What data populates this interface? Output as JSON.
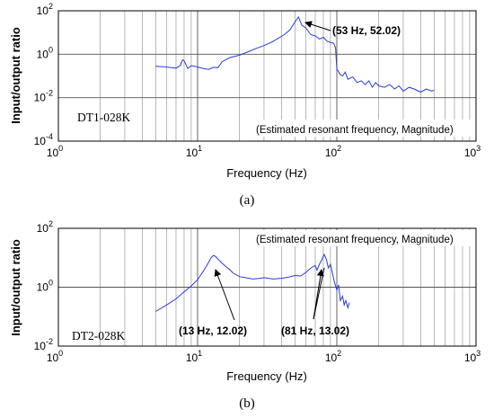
{
  "chart_data": [
    {
      "type": "line",
      "panel_caption": "(a)",
      "specimen_label": "DT1-028K",
      "annotation_box": "(Estimated resonant frequency, Magnitude)",
      "xlabel": "Frequency (Hz)",
      "ylabel": "Input/output ratio",
      "xscale": "log",
      "yscale": "log",
      "xlim": [
        1,
        1000
      ],
      "ylim": [
        0.0001,
        100
      ],
      "x_tick_labels": [
        {
          "base": "10",
          "exp": "0"
        },
        {
          "base": "10",
          "exp": "1"
        },
        {
          "base": "10",
          "exp": "2"
        },
        {
          "base": "10",
          "exp": "3"
        }
      ],
      "y_tick_labels": [
        {
          "base": "10",
          "exp": "2"
        },
        {
          "base": "10",
          "exp": "0"
        },
        {
          "base": "10",
          "exp": "-2"
        },
        {
          "base": "10",
          "exp": "-4"
        }
      ],
      "grid": true,
      "line_color": "#2b3bd6",
      "peaks": [
        {
          "x": 53,
          "y": 52.02,
          "label": "(53 Hz, 52.02)"
        }
      ],
      "series": [
        {
          "x": [
            5,
            5.5,
            6,
            6.5,
            7,
            7.5,
            7.8,
            8,
            8.5,
            9,
            9.5,
            10,
            11,
            12,
            13,
            14,
            15,
            17,
            20,
            23,
            26,
            30,
            34,
            38,
            42,
            46,
            50,
            53,
            56,
            60,
            65,
            70,
            75,
            80,
            85,
            90,
            95,
            98,
            100,
            102,
            105,
            110,
            115,
            120,
            130,
            140,
            150,
            160,
            170,
            180,
            190,
            200,
            220,
            240,
            260,
            280,
            300,
            330,
            360,
            400,
            440,
            480,
            500
          ],
          "y": [
            0.28,
            0.27,
            0.26,
            0.24,
            0.23,
            0.3,
            0.55,
            0.5,
            0.22,
            0.3,
            0.28,
            0.26,
            0.22,
            0.2,
            0.25,
            0.24,
            0.45,
            0.7,
            0.9,
            1.3,
            1.8,
            2.5,
            3.6,
            5.5,
            8,
            13,
            30,
            52,
            22,
            16,
            8,
            7,
            5,
            6,
            4,
            3.5,
            3.2,
            2,
            0.2,
            0.18,
            0.12,
            0.1,
            0.15,
            0.07,
            0.09,
            0.05,
            0.06,
            0.04,
            0.06,
            0.03,
            0.05,
            0.035,
            0.03,
            0.04,
            0.025,
            0.035,
            0.02,
            0.03,
            0.025,
            0.018,
            0.025,
            0.02,
            0.022
          ]
        }
      ]
    },
    {
      "type": "line",
      "panel_caption": "(b)",
      "specimen_label": "DT2-028K",
      "annotation_box": "(Estimated resonant frequency, Magnitude)",
      "xlabel": "Frequency (Hz)",
      "ylabel": "Input/output ratio",
      "xscale": "log",
      "yscale": "log",
      "xlim": [
        1,
        1000
      ],
      "ylim": [
        0.01,
        100
      ],
      "x_tick_labels": [
        {
          "base": "10",
          "exp": "0"
        },
        {
          "base": "10",
          "exp": "1"
        },
        {
          "base": "10",
          "exp": "2"
        },
        {
          "base": "10",
          "exp": "3"
        }
      ],
      "y_tick_labels": [
        {
          "base": "10",
          "exp": "2"
        },
        {
          "base": "10",
          "exp": "0"
        },
        {
          "base": "10",
          "exp": "-2"
        }
      ],
      "grid": true,
      "line_color": "#2b3bd6",
      "peaks": [
        {
          "x": 13,
          "y": 12.02,
          "label": "(13 Hz, 12.02)"
        },
        {
          "x": 81,
          "y": 13.02,
          "label": "(81 Hz, 13.02)"
        }
      ],
      "series": [
        {
          "x": [
            5,
            6,
            7,
            8,
            9,
            10,
            11,
            12,
            12.5,
            13,
            13.5,
            14,
            15,
            16,
            17,
            18,
            20,
            22,
            25,
            28,
            30,
            35,
            40,
            45,
            50,
            55,
            60,
            65,
            70,
            72,
            75,
            78,
            81,
            84,
            87,
            90,
            93,
            96,
            100,
            103,
            106,
            110,
            113,
            116,
            120,
            123
          ],
          "y": [
            0.15,
            0.25,
            0.4,
            0.7,
            1.1,
            1.8,
            3.5,
            7,
            10,
            12.02,
            11,
            9,
            6.5,
            5,
            4,
            3,
            2.3,
            2.1,
            1.9,
            2.0,
            2.1,
            1.9,
            2.0,
            2.2,
            2.5,
            2.4,
            3.2,
            4.5,
            5.5,
            3.8,
            6,
            8.5,
            13.02,
            9,
            4.5,
            6,
            3,
            1.5,
            0.8,
            1.2,
            0.35,
            0.5,
            0.25,
            0.35,
            0.2,
            0.3
          ]
        }
      ]
    }
  ]
}
